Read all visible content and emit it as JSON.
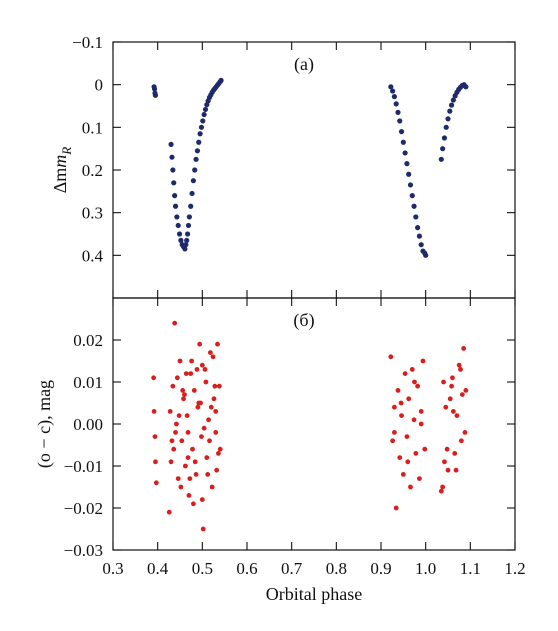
{
  "chart_data": [
    {
      "type": "scatter",
      "panel_label": "(a)",
      "ylabel_main": "Δm",
      "ylabel_sub": "R",
      "ylim": [
        -0.1,
        0.5
      ],
      "y_inverted": true,
      "yticks": [
        "−0.1",
        "0",
        "0.1",
        "0.2",
        "0.3",
        "0.4"
      ],
      "ytick_values": [
        -0.1,
        0,
        0.1,
        0.2,
        0.3,
        0.4
      ],
      "grid": false,
      "marker_color": "#1f2a6b",
      "series": [
        {
          "x": [
            0.392,
            0.393,
            0.394,
            0.395,
            0.43,
            0.432,
            0.434,
            0.436,
            0.438,
            0.44,
            0.443,
            0.446,
            0.449,
            0.452,
            0.455,
            0.458,
            0.461,
            0.463,
            0.465,
            0.467,
            0.469,
            0.471,
            0.474,
            0.477,
            0.48,
            0.483,
            0.486,
            0.489,
            0.492,
            0.495,
            0.498,
            0.501,
            0.504,
            0.507,
            0.51,
            0.513,
            0.516,
            0.519,
            0.522,
            0.525,
            0.528,
            0.531,
            0.534,
            0.537,
            0.54,
            0.542,
            0.922,
            0.926,
            0.93,
            0.934,
            0.938,
            0.942,
            0.946,
            0.95,
            0.954,
            0.958,
            0.962,
            0.966,
            0.97,
            0.974,
            0.978,
            0.982,
            0.986,
            0.99,
            0.994,
            0.998,
            1.0,
            1.035,
            1.038,
            1.042,
            1.046,
            1.05,
            1.054,
            1.058,
            1.062,
            1.066,
            1.07,
            1.074,
            1.078,
            1.082,
            1.086,
            1.09
          ],
          "y": [
            0.005,
            0.01,
            0.02,
            0.025,
            0.14,
            0.17,
            0.2,
            0.23,
            0.26,
            0.285,
            0.31,
            0.33,
            0.35,
            0.365,
            0.375,
            0.38,
            0.385,
            0.375,
            0.365,
            0.35,
            0.33,
            0.31,
            0.285,
            0.255,
            0.225,
            0.2,
            0.175,
            0.155,
            0.135,
            0.115,
            0.1,
            0.085,
            0.07,
            0.058,
            0.047,
            0.038,
            0.03,
            0.024,
            0.018,
            0.013,
            0.009,
            0.005,
            0.001,
            -0.003,
            -0.007,
            -0.01,
            0.005,
            0.015,
            0.028,
            0.045,
            0.065,
            0.085,
            0.11,
            0.135,
            0.16,
            0.185,
            0.21,
            0.235,
            0.26,
            0.285,
            0.31,
            0.335,
            0.355,
            0.375,
            0.39,
            0.395,
            0.4,
            0.175,
            0.15,
            0.125,
            0.1,
            0.08,
            0.062,
            0.048,
            0.036,
            0.026,
            0.018,
            0.011,
            0.006,
            0.002,
            0.0,
            0.005
          ]
        }
      ]
    },
    {
      "type": "scatter",
      "panel_label": "(б)",
      "ylabel": "(o − c), mag",
      "xlabel": "Orbital phase",
      "ylim": [
        -0.03,
        0.03
      ],
      "xlim": [
        0.3,
        1.2
      ],
      "yticks": [
        "0.02",
        "0.01",
        "0.00",
        "−0.01",
        "−0.02",
        "−0.03"
      ],
      "ytick_values": [
        0.02,
        0.01,
        0.0,
        -0.01,
        -0.02,
        -0.03
      ],
      "xticks": [
        "0.3",
        "0.4",
        "0.5",
        "0.6",
        "0.7",
        "0.8",
        "0.9",
        "1.0",
        "1.1",
        "1.2"
      ],
      "xtick_values": [
        0.3,
        0.4,
        0.5,
        0.6,
        0.7,
        0.8,
        0.9,
        1.0,
        1.1,
        1.2
      ],
      "grid": false,
      "marker_color": "#d91e1e",
      "series": [
        {
          "x": [
            0.391,
            0.392,
            0.394,
            0.395,
            0.397,
            0.426,
            0.43,
            0.434,
            0.438,
            0.442,
            0.446,
            0.45,
            0.454,
            0.458,
            0.462,
            0.466,
            0.47,
            0.474,
            0.478,
            0.482,
            0.486,
            0.49,
            0.494,
            0.498,
            0.502,
            0.506,
            0.51,
            0.514,
            0.518,
            0.522,
            0.526,
            0.53,
            0.534,
            0.538,
            0.54,
            0.428,
            0.436,
            0.444,
            0.452,
            0.46,
            0.468,
            0.476,
            0.484,
            0.492,
            0.5,
            0.508,
            0.516,
            0.524,
            0.532,
            0.44,
            0.456,
            0.472,
            0.488,
            0.504,
            0.52,
            0.536,
            0.448,
            0.464,
            0.48,
            0.496,
            0.512,
            0.528,
            0.432,
            0.468,
            0.5,
            0.53,
            0.922,
            0.926,
            0.93,
            0.934,
            0.938,
            0.942,
            0.946,
            0.95,
            0.954,
            0.958,
            0.962,
            0.966,
            0.97,
            0.974,
            0.978,
            0.982,
            0.986,
            0.99,
            0.994,
            0.998,
            0.93,
            0.945,
            0.96,
            0.975,
            0.99,
            1.035,
            1.04,
            1.045,
            1.05,
            1.055,
            1.06,
            1.065,
            1.07,
            1.075,
            1.08,
            1.085,
            1.09,
            1.038,
            1.048,
            1.058,
            1.068,
            1.078,
            1.088,
            1.042,
            1.062,
            1.082
          ],
          "y": [
            0.011,
            0.003,
            -0.003,
            -0.009,
            -0.014,
            -0.021,
            -0.009,
            0.009,
            0.024,
            0.0,
            -0.013,
            0.015,
            -0.004,
            0.006,
            -0.01,
            0.002,
            -0.017,
            0.012,
            -0.006,
            0.008,
            -0.012,
            0.004,
            0.019,
            -0.003,
            -0.025,
            0.013,
            -0.008,
            0.001,
            0.017,
            -0.015,
            0.006,
            -0.002,
            0.019,
            0.009,
            -0.006,
            0.003,
            -0.006,
            0.011,
            -0.015,
            0.007,
            -0.002,
            0.015,
            -0.009,
            0.005,
            -0.018,
            0.01,
            -0.004,
            0.016,
            -0.011,
            -0.002,
            0.008,
            -0.013,
            0.013,
            -0.001,
            0.004,
            -0.007,
            0.002,
            0.012,
            -0.019,
            0.005,
            -0.012,
            0.009,
            -0.004,
            -0.008,
            0.014,
            0.003,
            0.016,
            -0.004,
            0.004,
            -0.02,
            0.008,
            -0.008,
            0.002,
            -0.012,
            0.012,
            -0.003,
            0.006,
            -0.015,
            0.013,
            0.001,
            -0.007,
            0.009,
            -0.013,
            0.003,
            0.015,
            -0.006,
            -0.002,
            0.005,
            -0.009,
            0.01,
            0.0,
            -0.016,
            0.01,
            0.004,
            -0.011,
            0.006,
            0.011,
            -0.007,
            0.002,
            0.014,
            -0.004,
            0.018,
            0.008,
            -0.015,
            -0.006,
            0.009,
            -0.011,
            0.013,
            -0.002,
            -0.009,
            0.003,
            0.007
          ]
        }
      ]
    }
  ]
}
